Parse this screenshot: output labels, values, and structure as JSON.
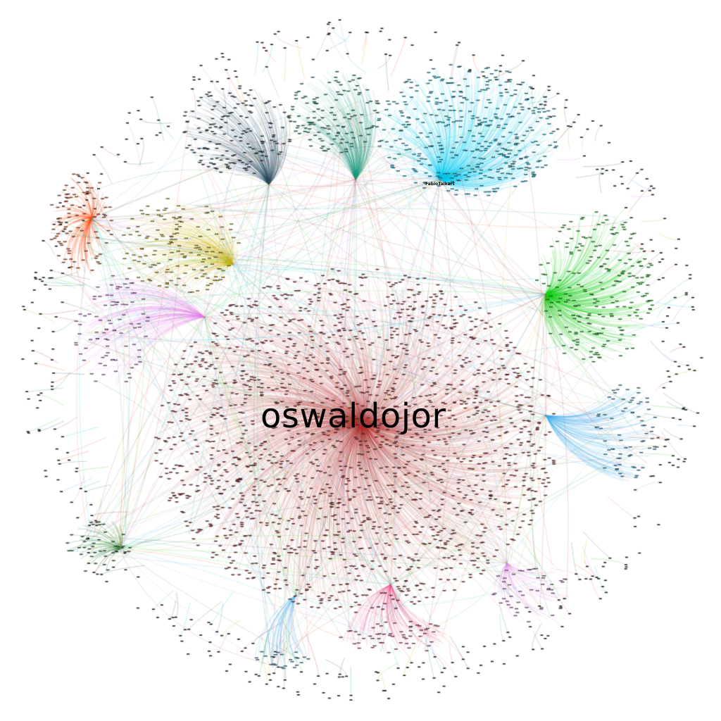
{
  "graph": {
    "main_label": "oswaldojor",
    "secondary_label": "FabioTalkart",
    "colors": {
      "background": "#ffffff",
      "dominant": "#b22222",
      "cyan": "#00c8f0",
      "green": "#10d010",
      "olive": "#c8b400",
      "orange": "#ff4500",
      "navy": "#23445e",
      "teal": "#17967a",
      "violet": "#e07ef0",
      "sky": "#3aa8e8",
      "pink": "#e8508c",
      "forest": "#1e7b2a",
      "node": "#1a1a1a"
    },
    "clusters": [
      {
        "name": "oswaldojor",
        "color": "dominant",
        "size": "largest"
      },
      {
        "name": "FabioTalkart",
        "color": "cyan",
        "size": "large"
      },
      {
        "name": "green-hub",
        "color": "green",
        "size": "large"
      },
      {
        "name": "olive-hub",
        "color": "olive",
        "size": "medium"
      },
      {
        "name": "navy-hub",
        "color": "navy",
        "size": "medium"
      },
      {
        "name": "teal-hub",
        "color": "teal",
        "size": "medium"
      },
      {
        "name": "orange-hub",
        "color": "orange",
        "size": "small"
      },
      {
        "name": "violet-hub",
        "color": "violet",
        "size": "small"
      },
      {
        "name": "sky-hub",
        "color": "sky",
        "size": "small"
      },
      {
        "name": "forest-hub",
        "color": "forest",
        "size": "small"
      }
    ]
  }
}
